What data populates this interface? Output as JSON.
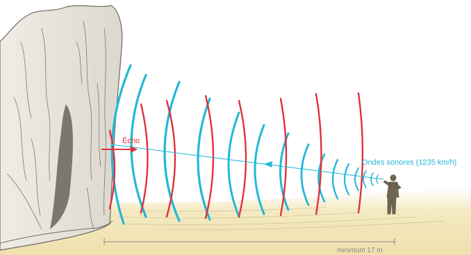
{
  "labels": {
    "echo": "Écho",
    "sound_waves": "Ondes sonores (1235 km/h)",
    "distance": "minimum 17 m"
  },
  "colors": {
    "echo": "#e0303a",
    "sound_waves": "#22b8d8",
    "ground": "#efe3b8",
    "rock": "#e6e3dc",
    "ink": "#6e6a5e",
    "distance_text": "#8a8a84"
  },
  "icons": {
    "cliff": "rock-cliff-illustration",
    "person": "person-figure-illustration"
  }
}
